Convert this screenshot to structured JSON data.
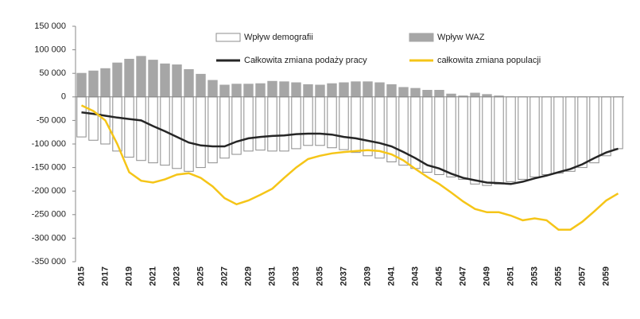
{
  "chart_data": {
    "type": "bar",
    "categories": [
      "2015",
      null,
      "2017",
      null,
      "2019",
      null,
      "2021",
      null,
      "2023",
      null,
      "2025",
      null,
      "2027",
      null,
      "2029",
      null,
      "2031",
      null,
      "2033",
      null,
      "2035",
      null,
      "2037",
      null,
      "2039",
      null,
      "2041",
      null,
      "2043",
      null,
      "2045",
      null,
      "2047",
      null,
      "2049",
      null,
      "2051",
      null,
      "2053",
      null,
      "2055",
      null,
      "2057",
      null,
      "2059",
      null
    ],
    "series": [
      {
        "name": "Wpływ demografii",
        "type": "bar",
        "color": "#ffffff",
        "stroke": "#8c8c8c",
        "values": [
          -85000,
          -92000,
          -100000,
          -115000,
          -128000,
          -135000,
          -140000,
          -145000,
          -152000,
          -158000,
          -150000,
          -140000,
          -130000,
          -122000,
          -115000,
          -113000,
          -115000,
          -115000,
          -110000,
          -103000,
          -103000,
          -108000,
          -112000,
          -118000,
          -125000,
          -130000,
          -138000,
          -145000,
          -152000,
          -160000,
          -165000,
          -170000,
          -175000,
          -185000,
          -188000,
          -185000,
          -180000,
          -175000,
          -170000,
          -165000,
          -162000,
          -158000,
          -150000,
          -140000,
          -125000,
          -110000
        ]
      },
      {
        "name": "Wpływ WAZ",
        "type": "bar",
        "color": "#a6a6a6",
        "stroke": "#a6a6a6",
        "values": [
          50000,
          55000,
          60000,
          72000,
          80000,
          86000,
          78000,
          70000,
          68000,
          58000,
          48000,
          35000,
          25000,
          27000,
          27000,
          28000,
          33000,
          32000,
          30000,
          26000,
          25000,
          28000,
          30000,
          32000,
          32000,
          30000,
          26000,
          20000,
          18000,
          14000,
          14000,
          6000,
          2000,
          8000,
          5000,
          2000,
          0,
          0,
          0,
          0,
          0,
          0,
          0,
          0,
          0,
          0
        ]
      },
      {
        "name": "Całkowita zmiana podaży pracy",
        "type": "line",
        "color": "#262626",
        "values": [
          -33000,
          -36000,
          -40000,
          -44000,
          -47000,
          -50000,
          -62000,
          -73000,
          -85000,
          -97000,
          -103000,
          -105000,
          -105000,
          -95000,
          -88000,
          -85000,
          -83000,
          -82000,
          -79000,
          -78000,
          -78000,
          -80000,
          -85000,
          -88000,
          -93000,
          -98000,
          -105000,
          -117000,
          -130000,
          -145000,
          -152000,
          -163000,
          -172000,
          -177000,
          -182000,
          -183000,
          -185000,
          -180000,
          -173000,
          -167000,
          -160000,
          -153000,
          -143000,
          -130000,
          -118000,
          -110000
        ]
      },
      {
        "name": "całkowita zmiana populacji",
        "type": "line",
        "color": "#f5c518",
        "values": [
          -18000,
          -30000,
          -50000,
          -100000,
          -160000,
          -178000,
          -182000,
          -175000,
          -165000,
          -162000,
          -172000,
          -190000,
          -215000,
          -228000,
          -220000,
          -208000,
          -195000,
          -172000,
          -150000,
          -132000,
          -125000,
          -120000,
          -117000,
          -115000,
          -113000,
          -115000,
          -122000,
          -135000,
          -153000,
          -170000,
          -185000,
          -203000,
          -222000,
          -238000,
          -245000,
          -245000,
          -252000,
          -262000,
          -258000,
          -262000,
          -282000,
          -282000,
          -265000,
          -243000,
          -220000,
          -205000
        ]
      }
    ],
    "ylim": [
      -350000,
      150000
    ],
    "yticks": [
      {
        "value": -350000,
        "label": "-350 000"
      },
      {
        "value": -300000,
        "label": "-300 000"
      },
      {
        "value": -250000,
        "label": "-250 000"
      },
      {
        "value": -200000,
        "label": "-200 000"
      },
      {
        "value": -150000,
        "label": "-150 000"
      },
      {
        "value": -100000,
        "label": "-100 000"
      },
      {
        "value": -50000,
        "label": "-50 000"
      },
      0,
      {
        "value": 50000,
        "label": "50 000"
      },
      {
        "value": 100000,
        "label": "100 000"
      },
      {
        "value": 150000,
        "label": "150 000"
      }
    ],
    "grid": false
  }
}
